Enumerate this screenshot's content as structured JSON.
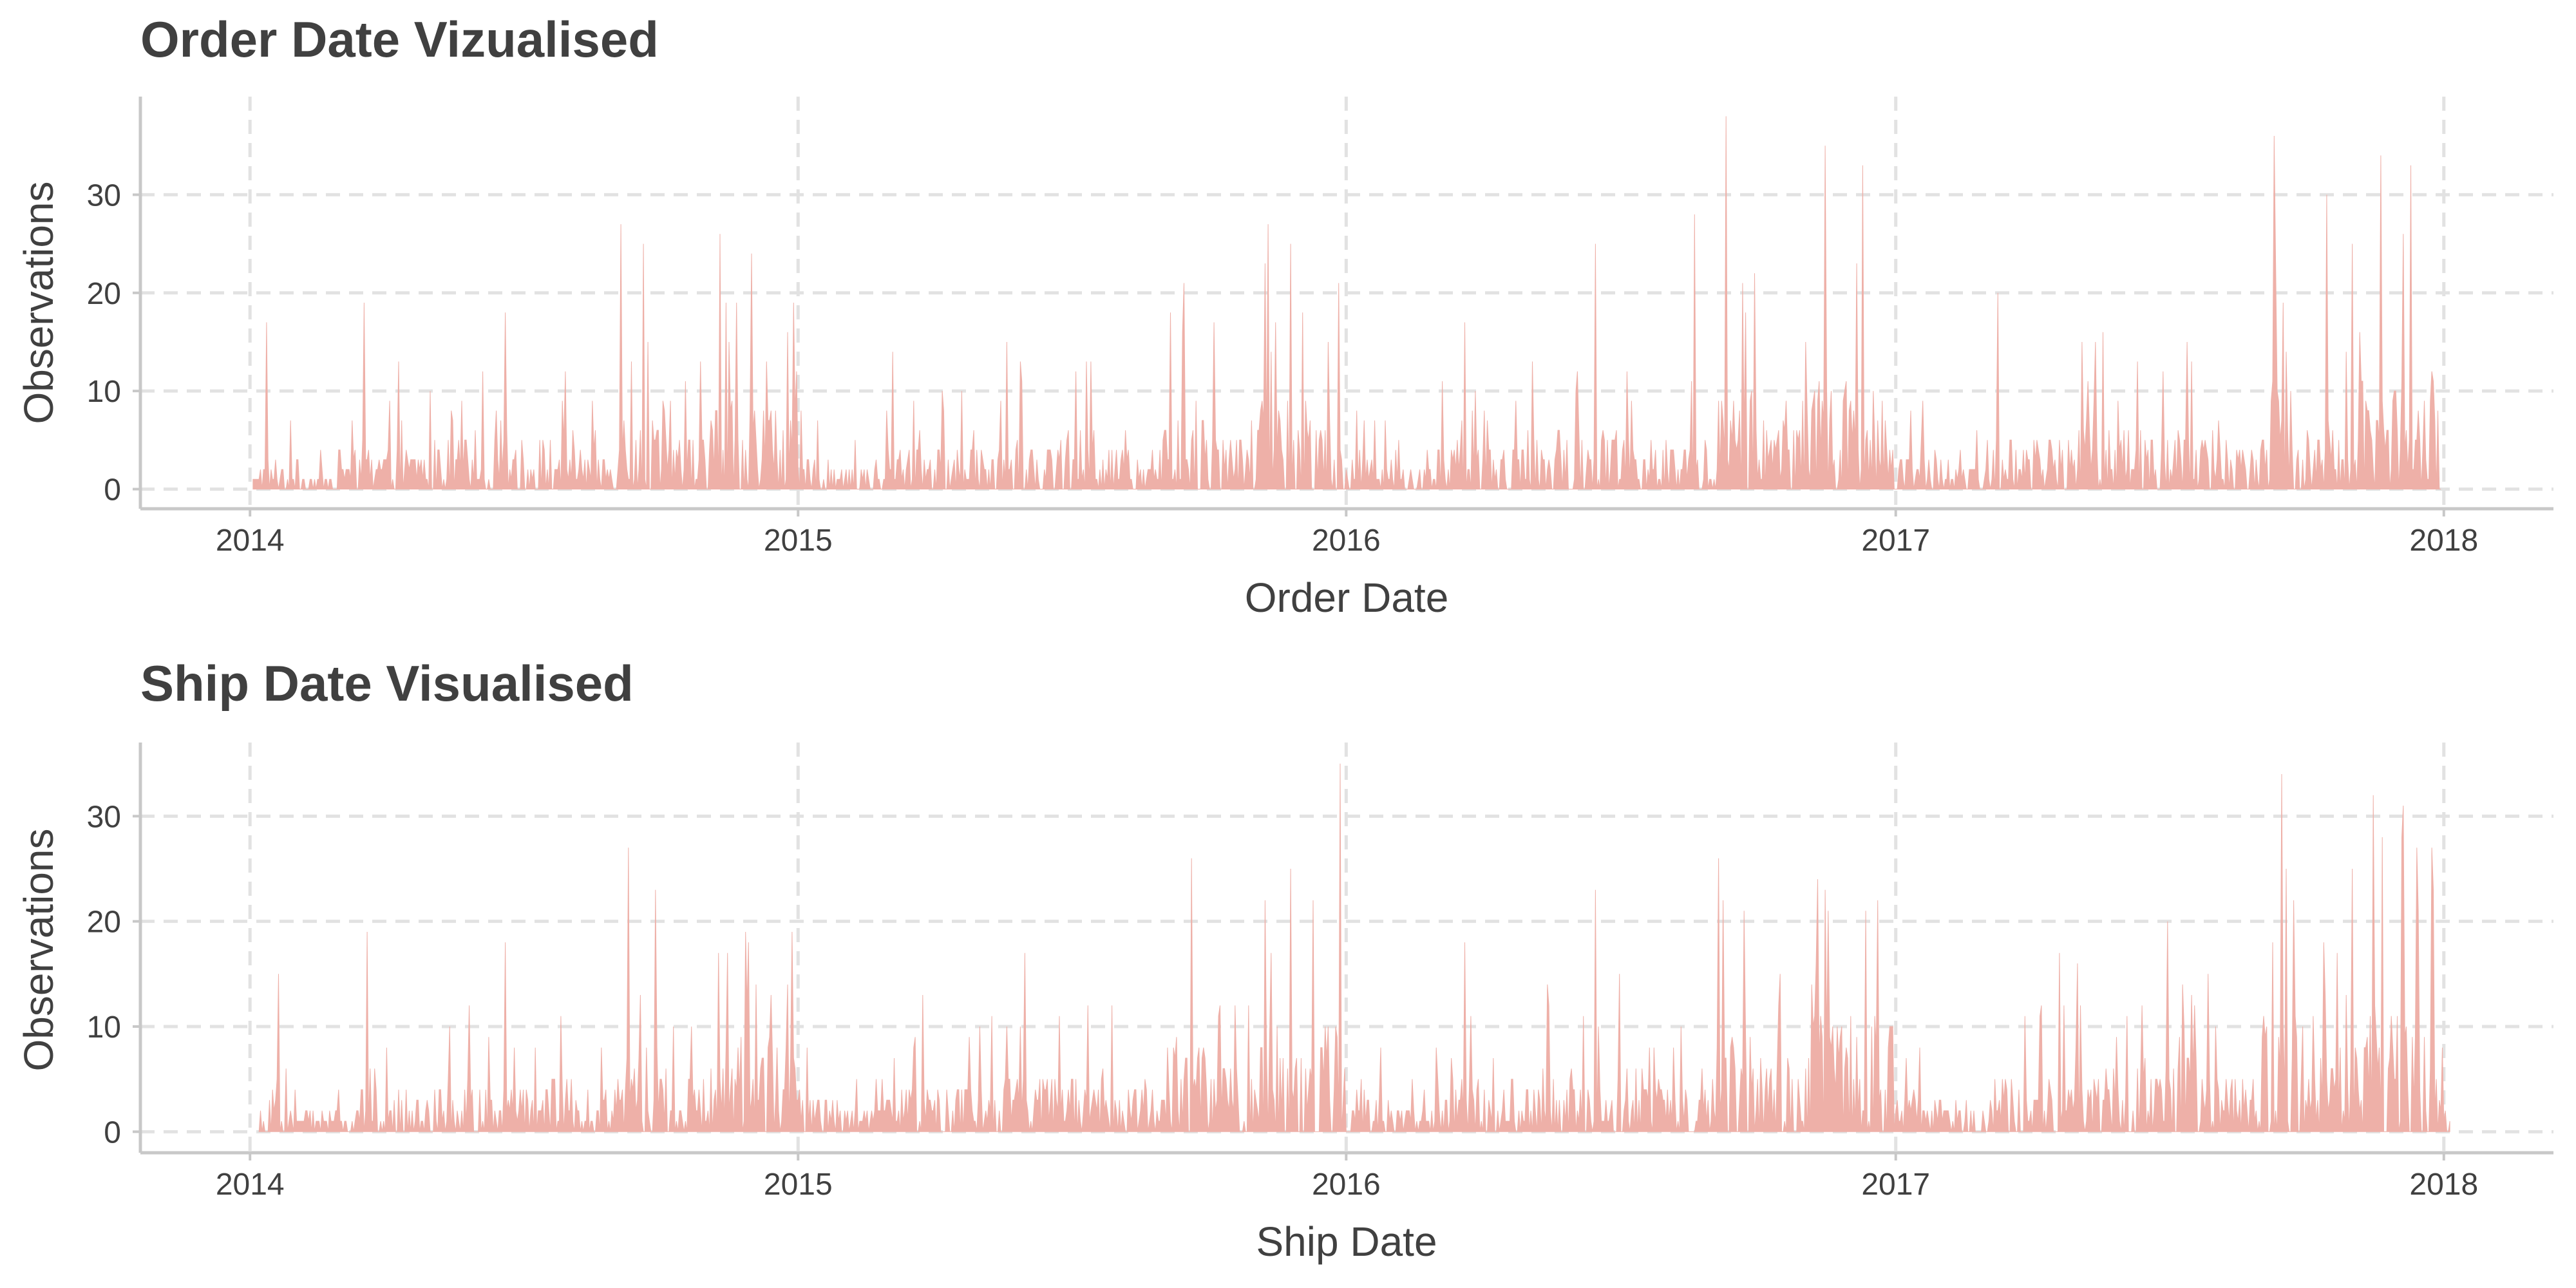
{
  "colors": {
    "area": "#eeb0a8",
    "text": "#404040",
    "grid": "#e2e2e2",
    "axis": "#c8c8c8"
  },
  "chart_data": [
    {
      "type": "area",
      "title": "Order Date Vizualised",
      "xlabel": "Order Date",
      "ylabel": "Observations",
      "x_ticks": [
        "2014",
        "2015",
        "2016",
        "2017",
        "2018"
      ],
      "y_ticks": [
        0,
        10,
        20,
        30
      ],
      "xlim": [
        "2013-10-20",
        "2018-03-15"
      ],
      "ylim": [
        -2,
        40
      ],
      "grid": true,
      "x_range": [
        "2014-01-03",
        "2017-12-30"
      ],
      "peaks": [
        {
          "x": "2014-01-12",
          "y": 17
        },
        {
          "x": "2014-03-18",
          "y": 19
        },
        {
          "x": "2014-04-10",
          "y": 13
        },
        {
          "x": "2014-06-20",
          "y": 18
        },
        {
          "x": "2014-09-05",
          "y": 27
        },
        {
          "x": "2014-09-20",
          "y": 25
        },
        {
          "x": "2014-11-10",
          "y": 26
        },
        {
          "x": "2014-12-01",
          "y": 24
        },
        {
          "x": "2014-12-25",
          "y": 16
        },
        {
          "x": "2015-03-05",
          "y": 14
        },
        {
          "x": "2015-05-20",
          "y": 15
        },
        {
          "x": "2015-09-15",
          "y": 21
        },
        {
          "x": "2015-10-05",
          "y": 17
        },
        {
          "x": "2015-11-10",
          "y": 27
        },
        {
          "x": "2015-11-25",
          "y": 25
        },
        {
          "x": "2015-12-20",
          "y": 15
        },
        {
          "x": "2016-03-20",
          "y": 17
        },
        {
          "x": "2016-06-15",
          "y": 25
        },
        {
          "x": "2016-08-20",
          "y": 28
        },
        {
          "x": "2016-09-10",
          "y": 38
        },
        {
          "x": "2016-11-15",
          "y": 35
        },
        {
          "x": "2016-12-10",
          "y": 33
        },
        {
          "x": "2017-03-10",
          "y": 20
        },
        {
          "x": "2017-05-05",
          "y": 15
        },
        {
          "x": "2017-09-10",
          "y": 36
        },
        {
          "x": "2017-10-15",
          "y": 30
        },
        {
          "x": "2017-11-20",
          "y": 34
        },
        {
          "x": "2017-12-10",
          "y": 33
        }
      ]
    },
    {
      "type": "area",
      "title": "Ship Date Visualised",
      "xlabel": "Ship Date",
      "ylabel": "Observations",
      "x_ticks": [
        "2014",
        "2015",
        "2016",
        "2017",
        "2018"
      ],
      "y_ticks": [
        0,
        10,
        20,
        30
      ],
      "xlim": [
        "2013-10-20",
        "2018-03-15"
      ],
      "ylim": [
        -2,
        37
      ],
      "grid": true,
      "x_range": [
        "2014-01-07",
        "2018-01-05"
      ],
      "peaks": [
        {
          "x": "2014-01-20",
          "y": 15
        },
        {
          "x": "2014-03-20",
          "y": 19
        },
        {
          "x": "2014-06-20",
          "y": 18
        },
        {
          "x": "2014-09-10",
          "y": 27
        },
        {
          "x": "2014-09-28",
          "y": 23
        },
        {
          "x": "2014-11-15",
          "y": 17
        },
        {
          "x": "2014-12-28",
          "y": 15
        },
        {
          "x": "2015-03-25",
          "y": 13
        },
        {
          "x": "2015-06-01",
          "y": 17
        },
        {
          "x": "2015-09-20",
          "y": 26
        },
        {
          "x": "2015-11-25",
          "y": 25
        },
        {
          "x": "2015-12-28",
          "y": 35
        },
        {
          "x": "2016-03-20",
          "y": 18
        },
        {
          "x": "2016-06-15",
          "y": 23
        },
        {
          "x": "2016-09-05",
          "y": 26
        },
        {
          "x": "2016-11-10",
          "y": 24
        },
        {
          "x": "2016-12-20",
          "y": 22
        },
        {
          "x": "2017-04-20",
          "y": 17
        },
        {
          "x": "2017-07-01",
          "y": 20
        },
        {
          "x": "2017-09-15",
          "y": 34
        },
        {
          "x": "2017-11-15",
          "y": 32
        },
        {
          "x": "2017-12-05",
          "y": 31
        },
        {
          "x": "2017-12-25",
          "y": 23
        }
      ]
    }
  ]
}
